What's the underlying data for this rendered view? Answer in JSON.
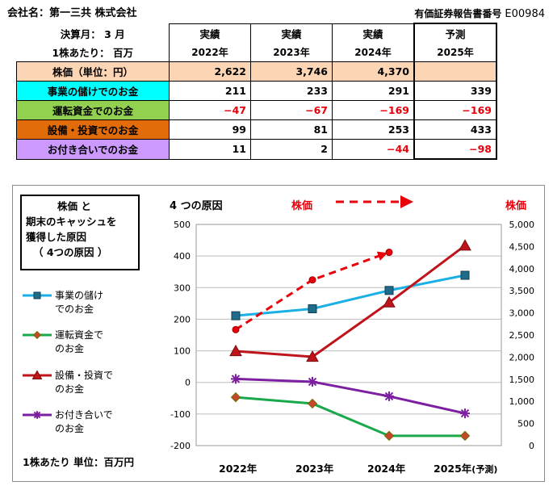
{
  "header": {
    "company_label": "会社名：第一三共 株式会社",
    "report_label": "有価証券報告書番号",
    "report_code": "E00984"
  },
  "table": {
    "fiscal_label": "決算月： 3 月",
    "per_share_label": "1株あたり： 百万",
    "status": [
      "実績",
      "実績",
      "実績",
      "予測"
    ],
    "years": [
      "2022年",
      "2023年",
      "2024年",
      "2025年"
    ],
    "rows": [
      {
        "label": "株価（単位：円）",
        "bg": "#fcd5b4",
        "values": [
          "2,622",
          "3,746",
          "4,370",
          ""
        ],
        "neg": [
          false,
          false,
          false,
          false
        ]
      },
      {
        "label": "事業の儲けでのお金",
        "bg": "#00ffff",
        "values": [
          "211",
          "233",
          "291",
          "339"
        ],
        "neg": [
          false,
          false,
          false,
          false
        ]
      },
      {
        "label": "運転資金でのお金",
        "bg": "#92d050",
        "values": [
          "−47",
          "−67",
          "−169",
          "−169"
        ],
        "neg": [
          true,
          true,
          true,
          true
        ]
      },
      {
        "label": "設備・投資でのお金",
        "bg": "#e26b0a",
        "values": [
          "99",
          "81",
          "253",
          "433"
        ],
        "neg": [
          false,
          false,
          false,
          false
        ]
      },
      {
        "label": "お付き合いでのお金",
        "bg": "#cc99ff",
        "values": [
          "11",
          "2",
          "−44",
          "−98"
        ],
        "neg": [
          false,
          false,
          true,
          true
        ]
      }
    ]
  },
  "chart": {
    "title_lines": [
      "株価 と",
      "期末のキャッシュを",
      "獲得した原因",
      "（ 4つの原因 ）"
    ],
    "reasons_label": "4 つの原因",
    "stock_label": "株価",
    "stock_label_right": "株価",
    "unit_note": "1株あたり 単位：百万円",
    "x_suffix": "(予測)"
  },
  "chart_data": {
    "type": "line",
    "categories": [
      "2022年",
      "2023年",
      "2024年",
      "2025年"
    ],
    "ylim": [
      -200,
      500
    ],
    "yticks": [
      -200,
      -100,
      0,
      100,
      200,
      300,
      400,
      500
    ],
    "y2lim": [
      0,
      5000
    ],
    "y2ticks": [
      0,
      500,
      1000,
      1500,
      2000,
      2500,
      3000,
      3500,
      4000,
      4500,
      5000
    ],
    "y2tick_labels": [
      "0",
      "500",
      "1,000",
      "1,500",
      "2,000",
      "2,500",
      "3,000",
      "3,500",
      "4,000",
      "4,500",
      "5,000"
    ],
    "series": [
      {
        "name": "事業の儲けでのお金",
        "legend_lines": [
          "事業の儲け",
          "でのお金"
        ],
        "values": [
          211,
          233,
          291,
          339
        ],
        "color": "#1ab0e6",
        "marker": "square",
        "axis": "left"
      },
      {
        "name": "運転資金でのお金",
        "legend_lines": [
          "運転資金で",
          "のお金"
        ],
        "values": [
          -47,
          -67,
          -169,
          -169
        ],
        "color": "#19a84a",
        "marker": "diamond",
        "axis": "left"
      },
      {
        "name": "設備・投資でのお金",
        "legend_lines": [
          "設備・投資で",
          "のお金"
        ],
        "values": [
          99,
          81,
          253,
          433
        ],
        "color": "#c0141c",
        "marker": "triangle",
        "axis": "left"
      },
      {
        "name": "お付き合いでのお金",
        "legend_lines": [
          "お付き合いで",
          "のお金"
        ],
        "values": [
          11,
          2,
          -44,
          -98
        ],
        "color": "#7c1fa0",
        "marker": "star",
        "axis": "left"
      },
      {
        "name": "株価",
        "values": [
          2622,
          3746,
          4370,
          null
        ],
        "color": "#e8000b",
        "marker": "circle",
        "dash": true,
        "axis": "right"
      }
    ]
  }
}
